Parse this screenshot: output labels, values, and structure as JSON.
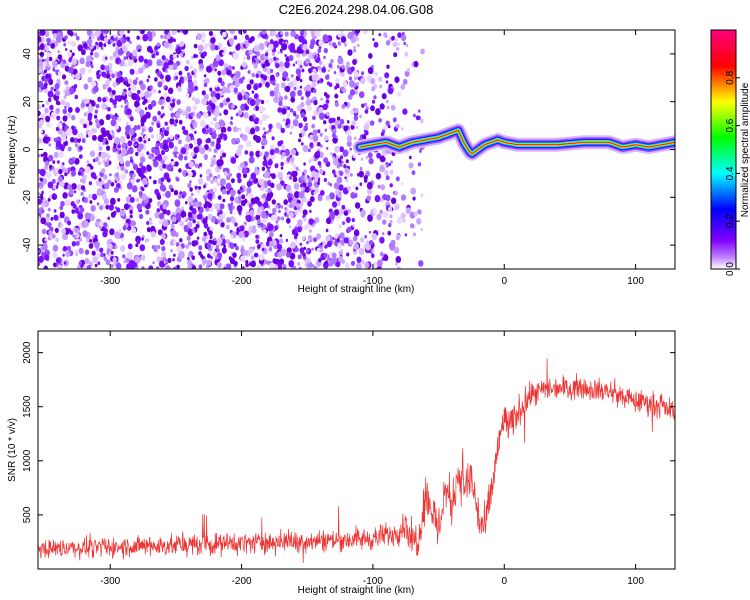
{
  "figure_title": "C2E6.2024.298.04.06.G08",
  "chart_data": [
    {
      "type": "heatmap",
      "title": "",
      "xlabel": "Height of straight line (km)",
      "ylabel": "Frequency (Hz)",
      "xlim": [
        -355,
        130
      ],
      "ylim": [
        -50,
        50
      ],
      "xticks": [
        -300,
        -200,
        -100,
        0,
        100
      ],
      "yticks": [
        -40,
        -20,
        0,
        20,
        40
      ],
      "grid": false,
      "colorbar": {
        "label": "Normalized spectral amplitude",
        "range": [
          0,
          1
        ],
        "ticks": [
          0.0,
          0.2,
          0.4,
          0.6,
          0.8
        ],
        "tick_labels": [
          "0.0",
          "0.2",
          "0.4",
          "0.6",
          "0.8"
        ],
        "colormap": "rainbow",
        "colors": [
          "#ffffff",
          "#8000ff",
          "#0000ff",
          "#00ffff",
          "#00ff00",
          "#ffff00",
          "#ff0000",
          "#ff0080"
        ]
      },
      "noise_region_x": [
        -355,
        -62
      ],
      "dominant_frequency_track": {
        "x": [
          -110,
          -100,
          -90,
          -80,
          -70,
          -60,
          -50,
          -40,
          -35,
          -30,
          -25,
          -20,
          -15,
          -10,
          -5,
          0,
          10,
          20,
          40,
          60,
          80,
          90,
          100,
          110,
          120,
          130
        ],
        "y": [
          1,
          2,
          3,
          1,
          3,
          4,
          5,
          7,
          8,
          2,
          -2,
          0,
          2,
          3,
          4,
          3,
          2,
          2,
          2,
          3,
          3,
          1,
          2,
          1,
          2,
          3
        ]
      }
    },
    {
      "type": "line",
      "title": "",
      "xlabel": "Height of straight line (km)",
      "ylabel": "SNR (10 * v/v)",
      "xlim": [
        -355,
        130
      ],
      "ylim": [
        0,
        2200
      ],
      "xticks": [
        -300,
        -200,
        -100,
        0,
        100
      ],
      "yticks": [
        500,
        1000,
        1500,
        2000
      ],
      "grid": false,
      "series": [
        {
          "color": "#ee3333",
          "x": [
            -350,
            -300,
            -250,
            -200,
            -150,
            -100,
            -90,
            -80,
            -75,
            -70,
            -65,
            -60,
            -55,
            -50,
            -45,
            -40,
            -35,
            -30,
            -25,
            -20,
            -15,
            -10,
            -5,
            0,
            5,
            10,
            20,
            30,
            40,
            60,
            80,
            100,
            110,
            120,
            130
          ],
          "y": [
            190,
            200,
            220,
            240,
            260,
            280,
            310,
            350,
            420,
            250,
            300,
            700,
            550,
            350,
            750,
            600,
            900,
            750,
            850,
            500,
            350,
            700,
            1100,
            1400,
            1300,
            1450,
            1600,
            1650,
            1680,
            1680,
            1640,
            1550,
            1540,
            1500,
            1460
          ],
          "noise_amplitude": [
            130,
            140,
            150,
            150,
            150,
            160,
            170,
            180,
            200,
            250,
            300,
            320,
            320,
            320,
            320,
            320,
            320,
            320,
            350,
            320,
            300,
            300,
            280,
            250,
            250,
            220,
            180,
            170,
            160,
            160,
            160,
            160,
            160,
            160,
            150
          ]
        }
      ]
    }
  ]
}
